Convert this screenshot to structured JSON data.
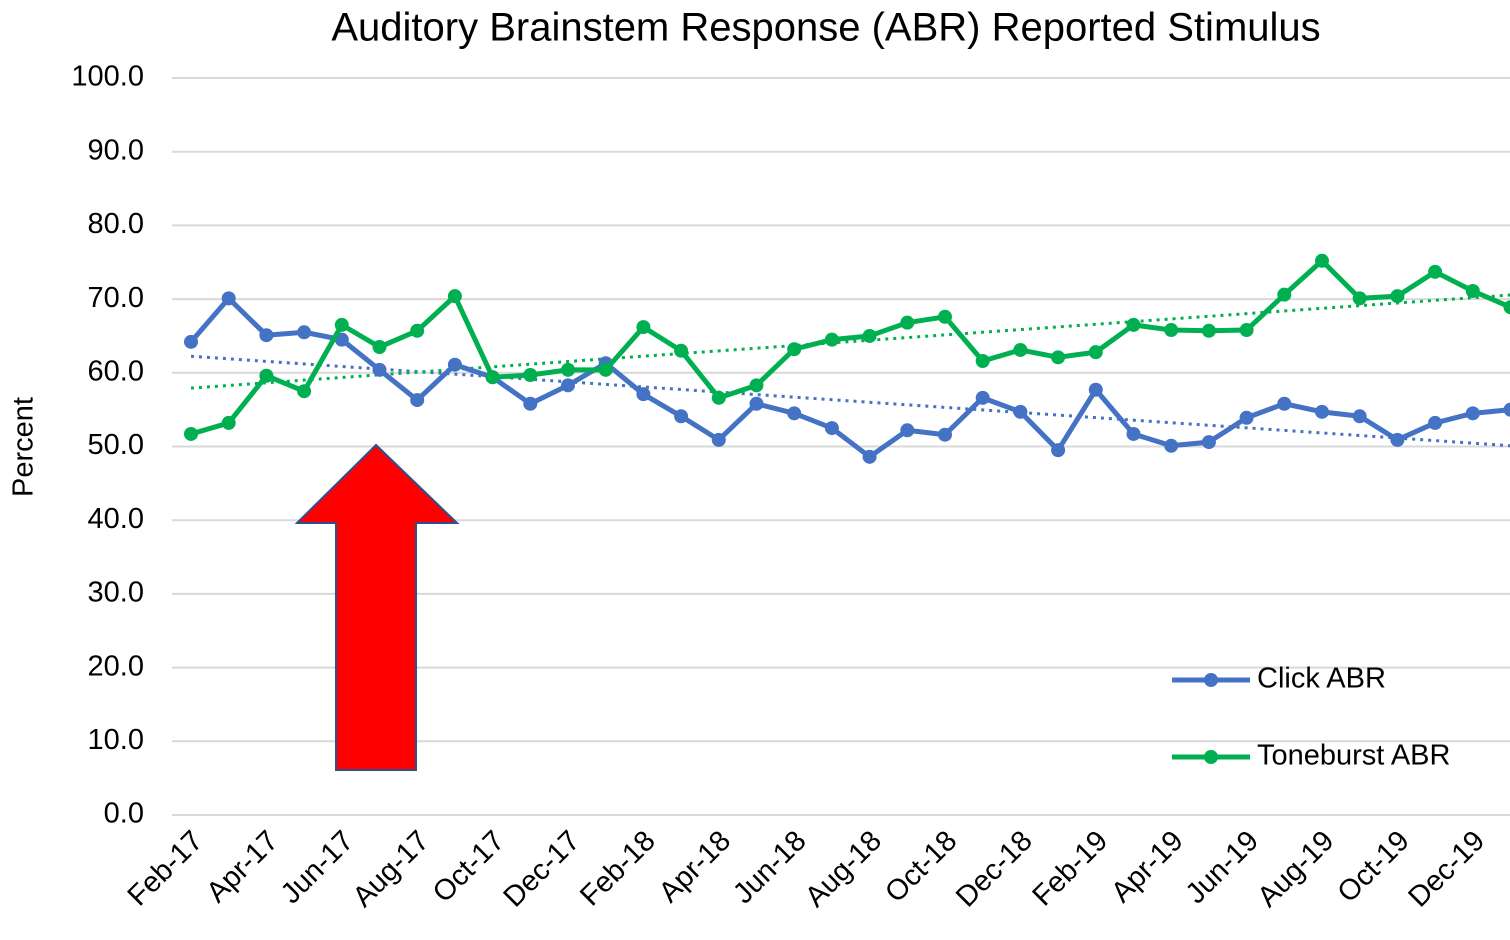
{
  "chart_data": {
    "type": "line",
    "title": "Auditory Brainstem Response (ABR) Reported Stimulus",
    "y_label": "Percent",
    "categories": [
      "Feb-17",
      null,
      "Apr-17",
      null,
      "Jun-17",
      null,
      "Aug-17",
      null,
      "Oct-17",
      null,
      "Dec-17",
      null,
      "Feb-18",
      null,
      "Apr-18",
      null,
      "Jun-18",
      null,
      "Aug-18",
      null,
      "Oct-18",
      null,
      "Dec-18",
      null,
      "Feb-19",
      null,
      "Apr-19",
      null,
      "Jun-19",
      null,
      "Aug-19",
      null,
      "Oct-19",
      null,
      "Dec-19",
      null
    ],
    "series": [
      {
        "name": "Click ABR",
        "color": "#4472c4",
        "values": [
          64.2,
          70.1,
          65.1,
          65.5,
          64.5,
          60.4,
          56.3,
          61.1,
          59.4,
          55.8,
          58.3,
          61.3,
          57.1,
          54.1,
          50.9,
          55.8,
          54.5,
          52.5,
          48.6,
          52.2,
          51.6,
          56.6,
          54.7,
          49.5,
          57.7,
          51.7,
          50.1,
          50.6,
          53.9,
          55.8,
          54.7,
          54.1,
          50.9,
          53.2,
          54.5,
          55.0
        ]
      },
      {
        "name": "Toneburst ABR",
        "color": "#00b050",
        "values": [
          51.7,
          53.2,
          59.6,
          57.5,
          66.5,
          63.5,
          65.7,
          70.4,
          59.4,
          59.7,
          60.4,
          60.4,
          66.2,
          63.0,
          56.6,
          58.3,
          63.2,
          64.5,
          65.0,
          66.8,
          67.6,
          61.6,
          63.1,
          62.1,
          62.8,
          66.5,
          65.8,
          65.7,
          65.8,
          70.6,
          75.2,
          70.1,
          70.4,
          73.7,
          71.1,
          68.9
        ]
      }
    ],
    "ylim": [
      0,
      100
    ],
    "yticks": [
      {
        "value": 0,
        "label": "0.0"
      },
      {
        "value": 10,
        "label": "10.0"
      },
      {
        "value": 20,
        "label": "20.0"
      },
      {
        "value": 30,
        "label": "30.0"
      },
      {
        "value": 40,
        "label": "40.0"
      },
      {
        "value": 50,
        "label": "50.0"
      },
      {
        "value": 60,
        "label": "60.0"
      },
      {
        "value": 70,
        "label": "70.0"
      },
      {
        "value": 80,
        "label": "80.0"
      },
      {
        "value": 90,
        "label": "90.0"
      },
      {
        "value": 100,
        "label": "100.0"
      }
    ],
    "grid": true,
    "trendline": true,
    "legend": "lower right"
  }
}
